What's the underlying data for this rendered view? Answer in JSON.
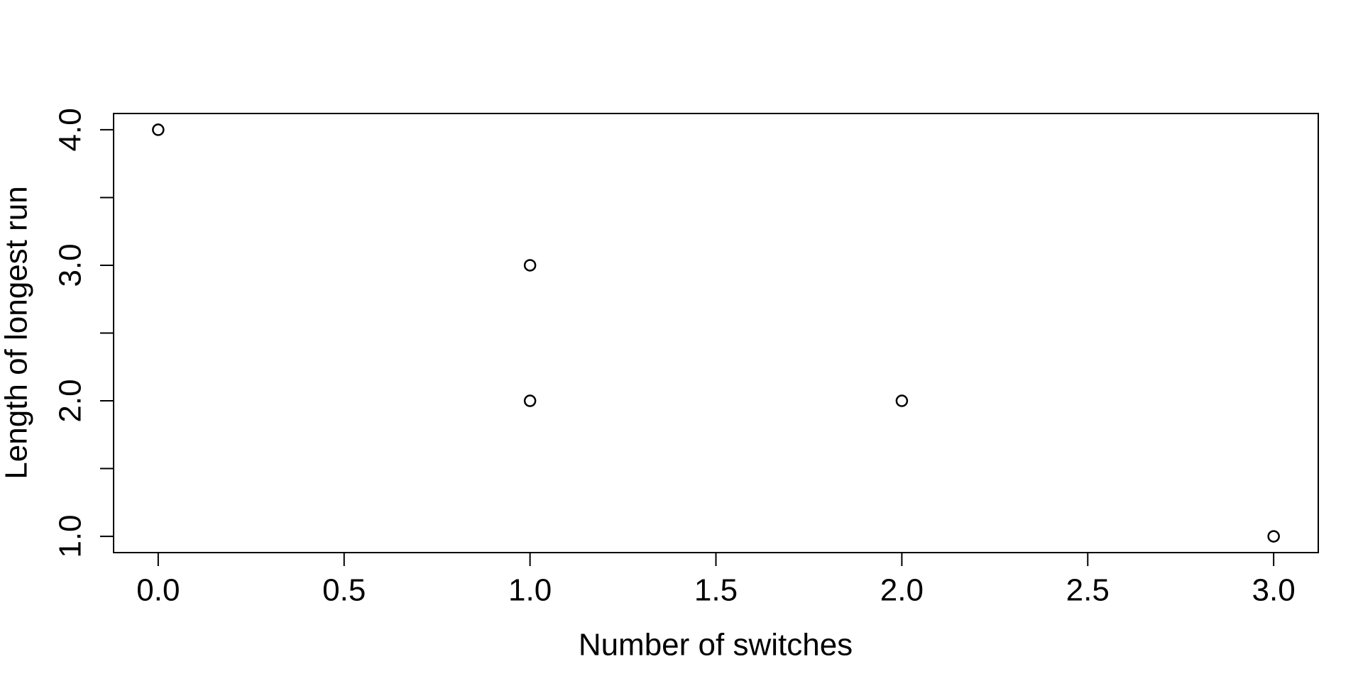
{
  "chart_data": {
    "type": "scatter",
    "xlabel": "Number of switches",
    "ylabel": "Length of longest run",
    "x": [
      0,
      1,
      1,
      2,
      3
    ],
    "values": [
      4,
      3,
      2,
      2,
      1
    ],
    "color": "#000000",
    "xlim": [
      -0.12,
      3.12
    ],
    "ylim": [
      0.88,
      4.12
    ],
    "xticks": [
      {
        "value": 0,
        "label": "0.0"
      },
      {
        "value": 0.5,
        "label": "0.5"
      },
      {
        "value": 1,
        "label": "1.0"
      },
      {
        "value": 1.5,
        "label": "1.5"
      },
      {
        "value": 2,
        "label": "2.0"
      },
      {
        "value": 2.5,
        "label": "2.5"
      },
      {
        "value": 3,
        "label": "3.0"
      }
    ],
    "yticks": [
      {
        "value": 1,
        "label": "1.0"
      },
      {
        "value": 2,
        "label": "2.0"
      },
      {
        "value": 3,
        "label": "3.0"
      },
      {
        "value": 4,
        "label": "4.0"
      }
    ],
    "yticks_minor": [
      1.5,
      2.5,
      3.5
    ],
    "grid": false
  }
}
